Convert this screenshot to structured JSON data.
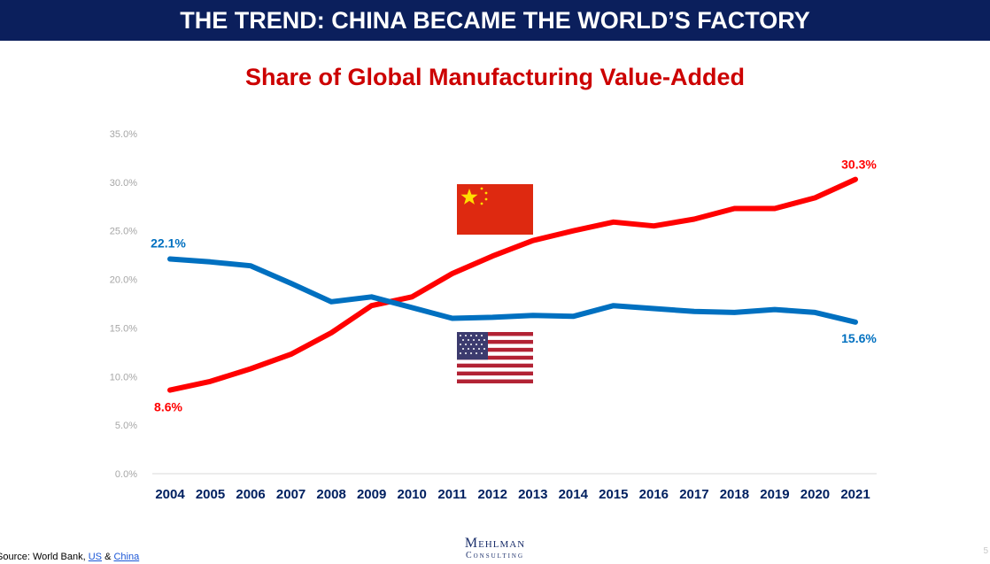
{
  "banner": {
    "title": "THE TREND: CHINA BECAME THE WORLD’S FACTORY"
  },
  "chart_data": {
    "type": "line",
    "title": "Share of Global Manufacturing Value-Added",
    "xlabel": "",
    "ylabel": "",
    "categories": [
      "2004",
      "2005",
      "2006",
      "2007",
      "2008",
      "2009",
      "2010",
      "2011",
      "2012",
      "2013",
      "2014",
      "2015",
      "2016",
      "2017",
      "2018",
      "2019",
      "2020",
      "2021"
    ],
    "ylim": [
      0,
      35
    ],
    "yticks": [
      "0.0%",
      "5.0%",
      "10.0%",
      "15.0%",
      "20.0%",
      "25.0%",
      "30.0%",
      "35.0%"
    ],
    "series": [
      {
        "name": "China",
        "color": "#ff0000",
        "values": [
          8.6,
          9.5,
          10.8,
          12.3,
          14.5,
          17.3,
          18.2,
          20.6,
          22.4,
          24.0,
          25.0,
          25.9,
          25.5,
          26.2,
          27.3,
          27.3,
          28.4,
          30.3
        ],
        "start_label": "8.6%",
        "end_label": "30.3%"
      },
      {
        "name": "United States",
        "color": "#0070c0",
        "values": [
          22.1,
          21.8,
          21.4,
          19.6,
          17.7,
          18.2,
          17.1,
          16.0,
          16.1,
          16.3,
          16.2,
          17.3,
          17.0,
          16.7,
          16.6,
          16.9,
          16.6,
          15.6
        ],
        "start_label": "22.1%",
        "end_label": "15.6%"
      }
    ],
    "grid": false,
    "legend": "flags"
  },
  "footer": {
    "source_prefix": "Source: World Bank, ",
    "source_link_us": "US",
    "source_amp": " & ",
    "source_link_china": "China",
    "logo_line1": "Mehlman",
    "logo_line2": "Consulting",
    "page_number": "5"
  },
  "colors": {
    "banner_bg": "#0b1f5c",
    "title_red": "#cc0000",
    "china_line": "#ff0000",
    "us_line": "#0070c0",
    "axis_text": "#002060"
  }
}
